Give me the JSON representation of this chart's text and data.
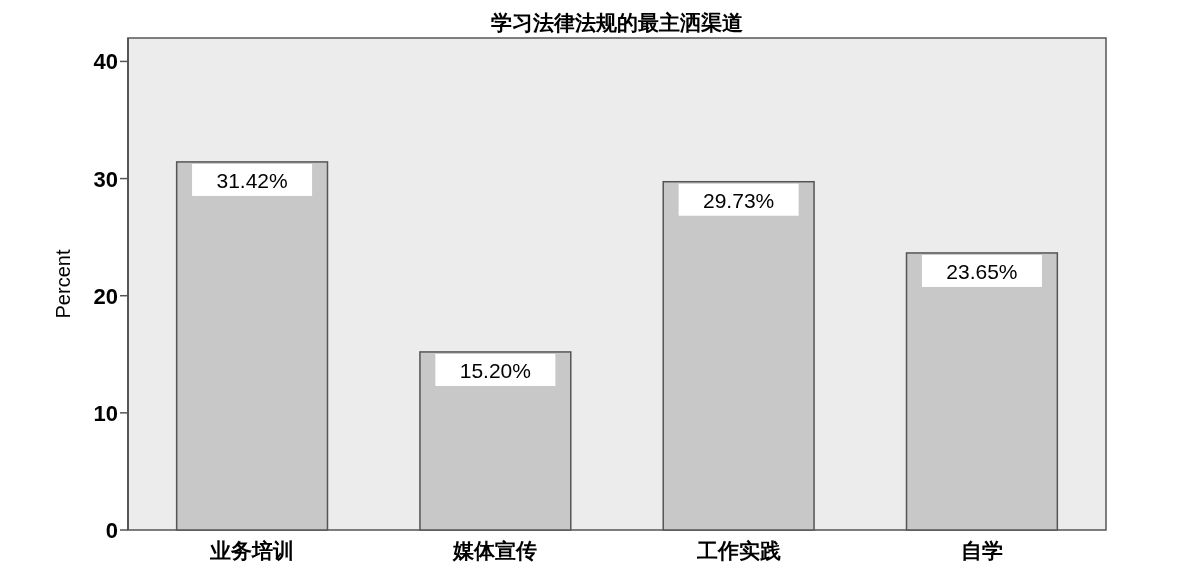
{
  "chart_data": {
    "type": "bar",
    "title": "学习法律法规的最主洒渠道",
    "ylabel": "Percent",
    "categories": [
      "业务培训",
      "媒体宣传",
      "工作实践",
      "自学"
    ],
    "values": [
      31.42,
      15.2,
      29.73,
      23.65
    ],
    "value_labels": [
      "31.42%",
      "15.20%",
      "29.73%",
      "23.65%"
    ],
    "color": "#c8c8c8",
    "ylim": [
      0,
      42
    ],
    "yticks": [
      0,
      10,
      20,
      30,
      40
    ]
  }
}
